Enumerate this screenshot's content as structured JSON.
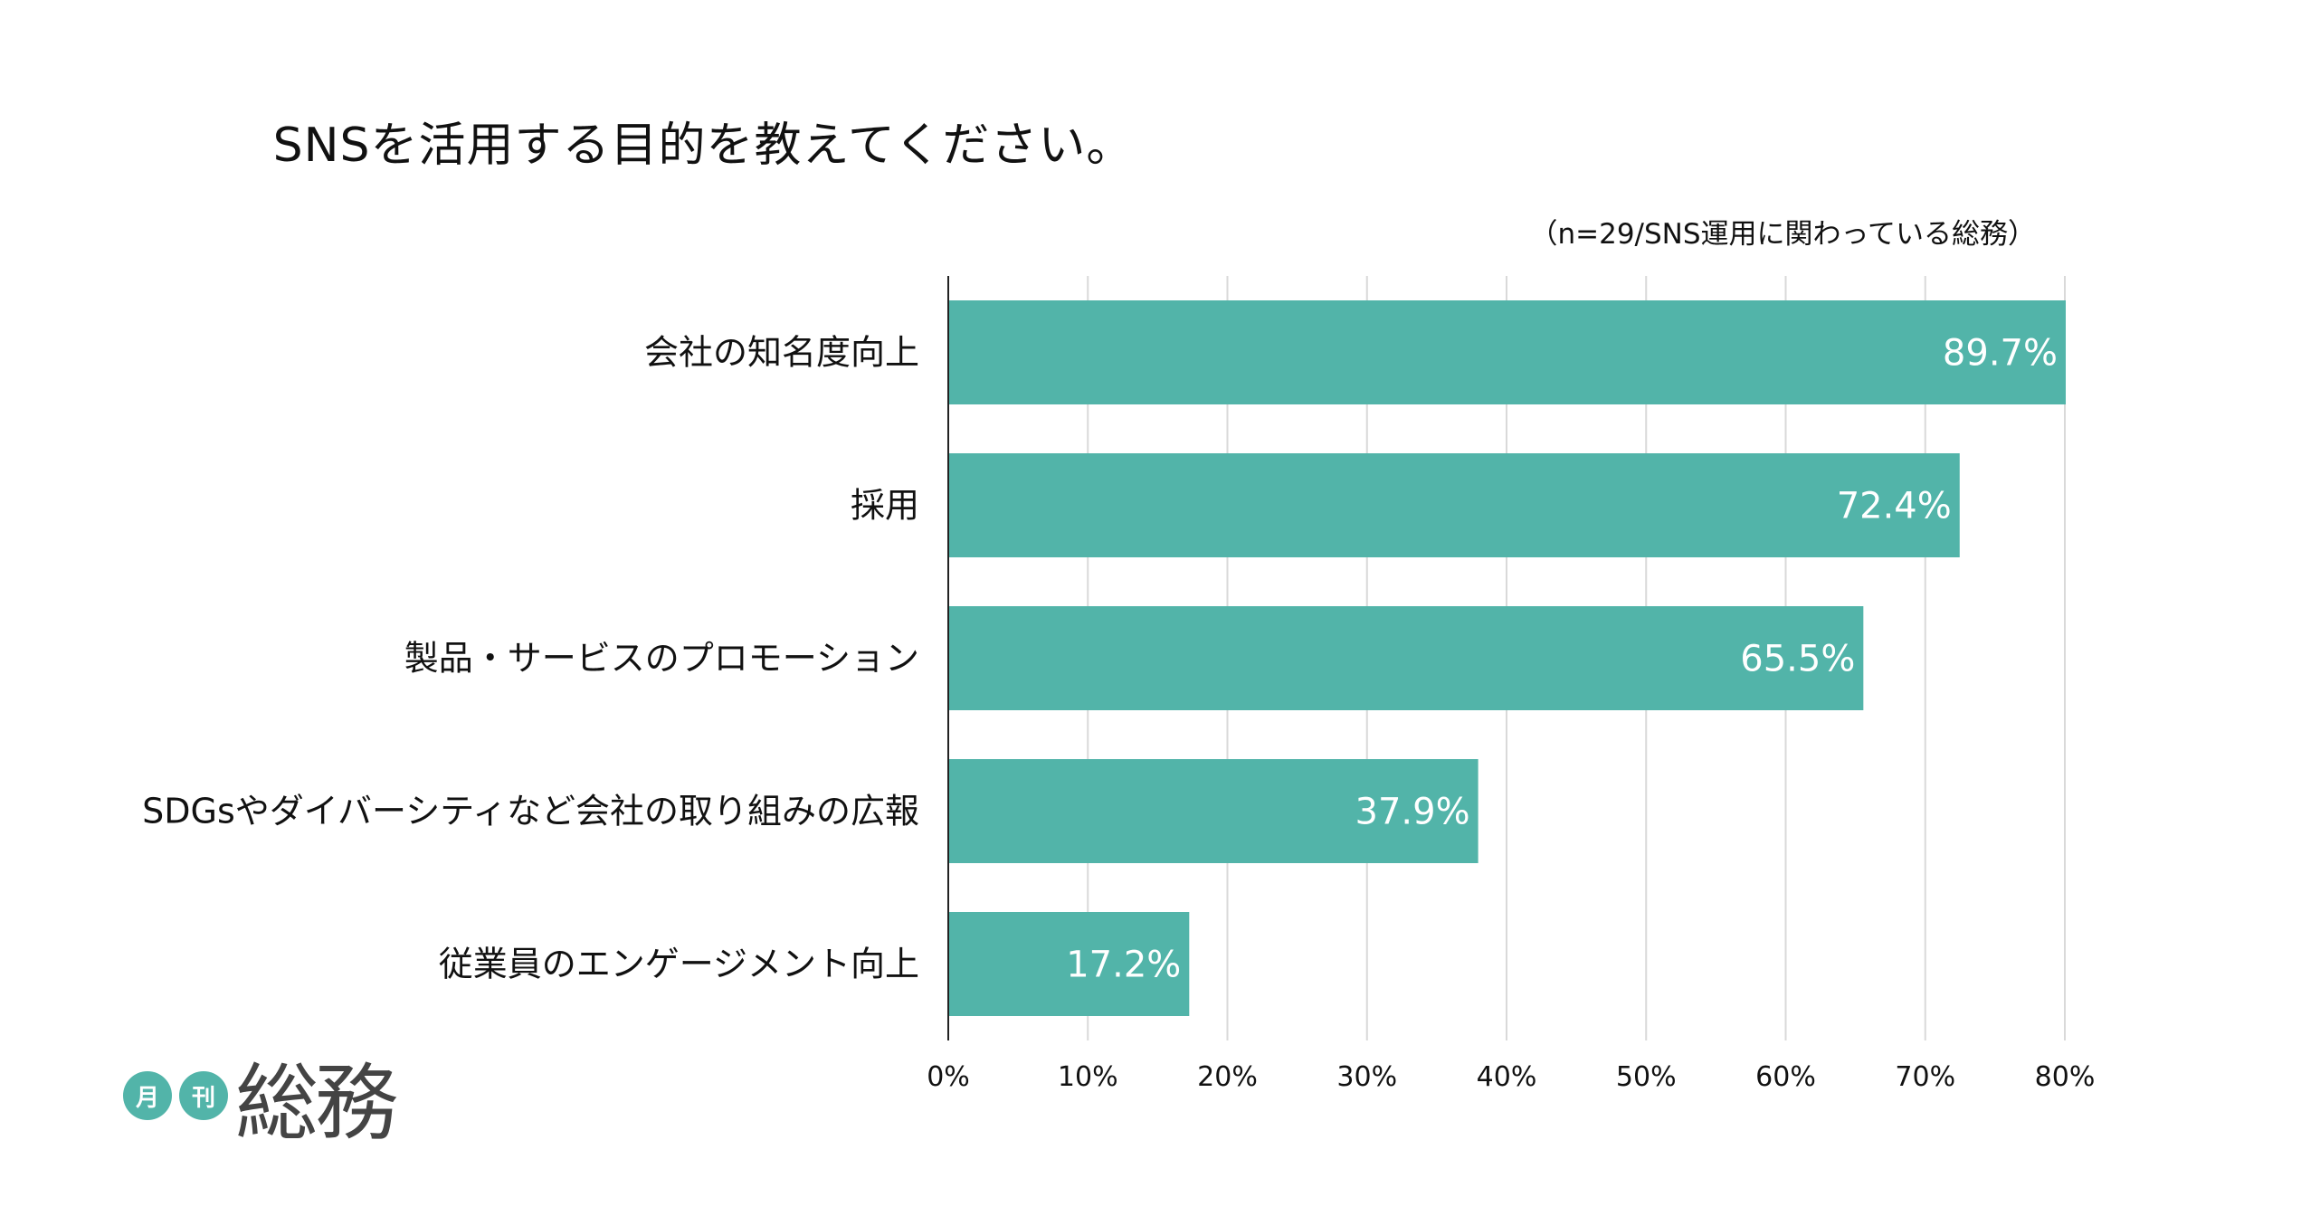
{
  "chart_data": {
    "type": "bar",
    "orientation": "horizontal",
    "title": "SNSを活用する目的を教えてください。",
    "subtitle": "（n=29/SNS運用に関わっている総務）",
    "categories": [
      "会社の知名度向上",
      "採用",
      "製品・サービスのプロモーション",
      "SDGsやダイバーシティなど会社の取り組みの広報",
      "従業員のエンゲージメント向上"
    ],
    "values": [
      89.7,
      72.4,
      65.5,
      37.9,
      17.2
    ],
    "value_labels": [
      "89.7%",
      "72.4%",
      "65.5%",
      "37.9%",
      "17.2%"
    ],
    "xlim": [
      0,
      80
    ],
    "x_ticks": [
      "0%",
      "10%",
      "20%",
      "30%",
      "40%",
      "50%",
      "60%",
      "70%",
      "80%"
    ],
    "bar_color": "#52b4a9",
    "grid": true
  },
  "logo": {
    "circle1": "月",
    "circle2": "刊",
    "main": "総務"
  }
}
